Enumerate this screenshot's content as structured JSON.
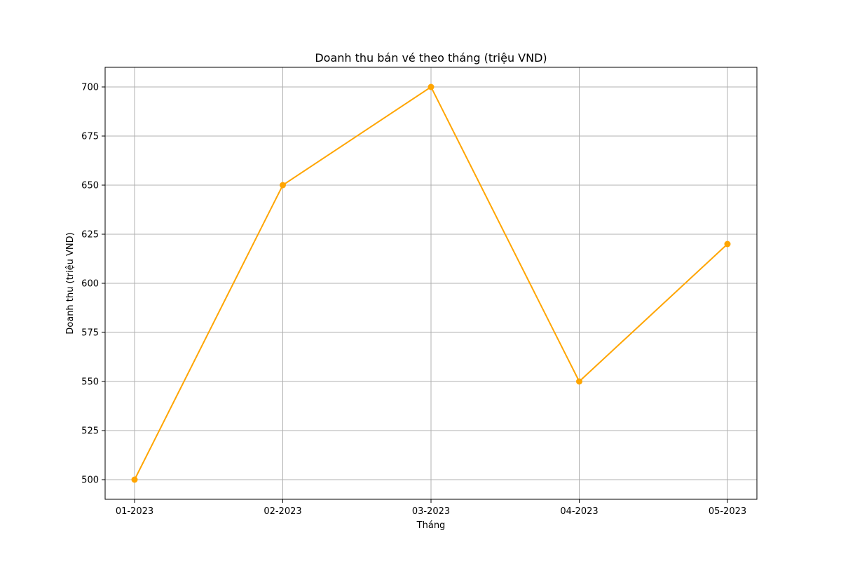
{
  "chart_data": {
    "type": "line",
    "title": "Doanh thu bán vé theo tháng (triệu VND)",
    "xlabel": "Tháng",
    "ylabel": "Doanh thu (triệu VND)",
    "categories": [
      "01-2023",
      "02-2023",
      "03-2023",
      "04-2023",
      "05-2023"
    ],
    "series": [
      {
        "values": [
          500,
          650,
          700,
          550,
          620
        ],
        "color": "#FFA500",
        "marker": "circle"
      }
    ],
    "ylim": [
      490,
      710
    ],
    "yticks": [
      500,
      525,
      550,
      575,
      600,
      625,
      650,
      675,
      700
    ],
    "grid": true,
    "legend": "none"
  }
}
